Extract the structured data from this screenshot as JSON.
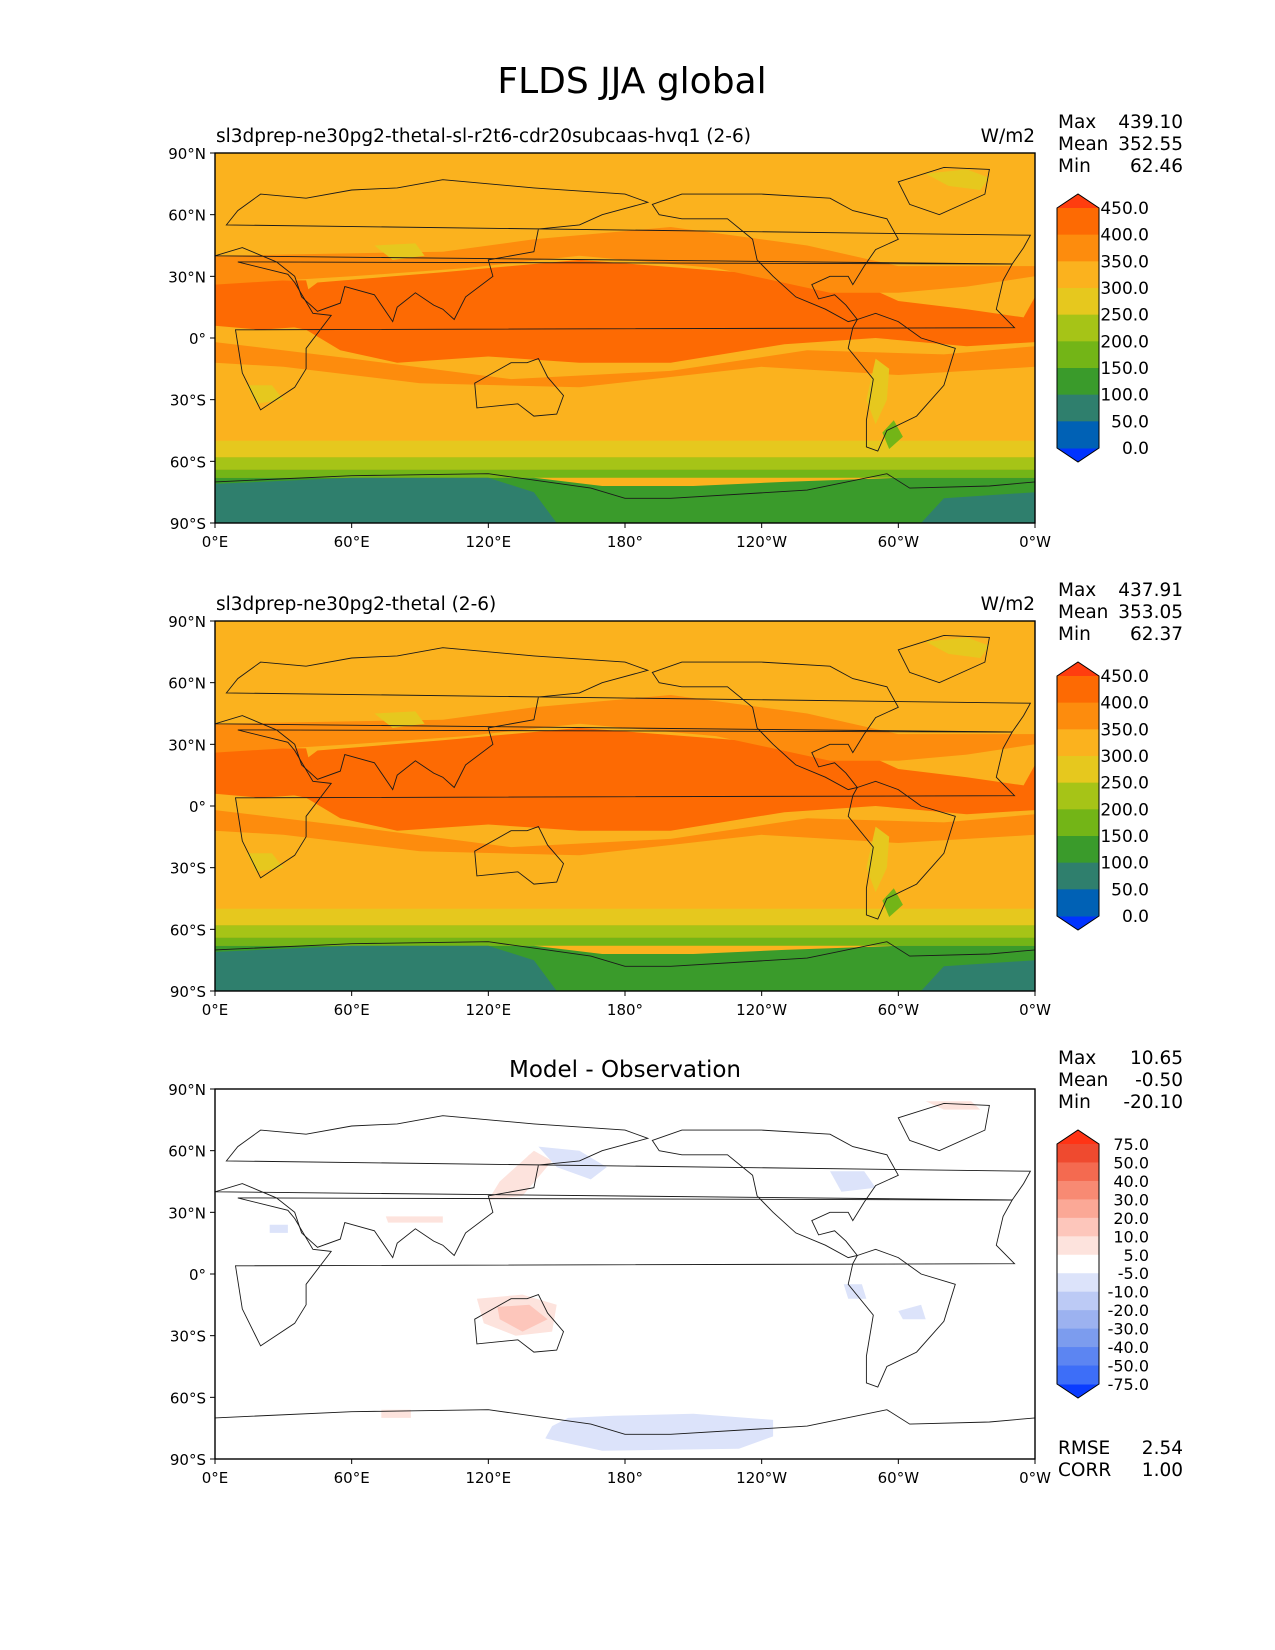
{
  "title": "FLDS JJA global",
  "colors": {
    "abs": [
      "#0033ff",
      "#0061b5",
      "#2f7f6d",
      "#3a9b2b",
      "#73b517",
      "#a6c417",
      "#e6c81e",
      "#fbb21e",
      "#fd8c0d",
      "#fd6a03",
      "#ff3d0f"
    ],
    "diff": [
      "#0a3cff",
      "#3d6ef8",
      "#5c85f2",
      "#7c9cee",
      "#9cb2f0",
      "#bccaf5",
      "#dce3fa",
      "#ffffff",
      "#fde3dd",
      "#fdc6bb",
      "#fba896",
      "#f88a73",
      "#f46a50",
      "#ef4a2f",
      "#ff3415"
    ]
  },
  "axes": {
    "x_ticks": [
      "0°E",
      "60°E",
      "120°E",
      "180°",
      "120°W",
      "60°W",
      "0°W"
    ],
    "y_ticks": [
      "90°N",
      "60°N",
      "30°N",
      "0°",
      "30°S",
      "60°S",
      "90°S"
    ]
  },
  "chart_data": [
    {
      "type": "heatmap",
      "title": "sl3dprep-ne30pg2-thetal-sl-r2t6-cdr20subcaas-hvq1 (2-6)",
      "units": "W/m2",
      "stats": [
        {
          "label": "Max",
          "value": "439.10"
        },
        {
          "label": "Mean",
          "value": "352.55"
        },
        {
          "label": "Min",
          "value": "62.46"
        }
      ],
      "colorbar": {
        "levels": [
          0,
          50,
          100,
          150,
          200,
          250,
          300,
          350,
          400,
          450
        ],
        "tick_labels": [
          "450.0",
          "400.0",
          "350.0",
          "300.0",
          "250.0",
          "200.0",
          "150.0",
          "100.0",
          "50.0",
          "0.0"
        ]
      },
      "xlim": [
        0,
        360
      ],
      "ylim": [
        -90,
        90
      ]
    },
    {
      "type": "heatmap",
      "title": "sl3dprep-ne30pg2-thetal (2-6)",
      "units": "W/m2",
      "stats": [
        {
          "label": "Max",
          "value": "437.91"
        },
        {
          "label": "Mean",
          "value": "353.05"
        },
        {
          "label": "Min",
          "value": "62.37"
        }
      ],
      "colorbar": {
        "levels": [
          0,
          50,
          100,
          150,
          200,
          250,
          300,
          350,
          400,
          450
        ],
        "tick_labels": [
          "450.0",
          "400.0",
          "350.0",
          "300.0",
          "250.0",
          "200.0",
          "150.0",
          "100.0",
          "50.0",
          "0.0"
        ]
      },
      "xlim": [
        0,
        360
      ],
      "ylim": [
        -90,
        90
      ]
    },
    {
      "type": "heatmap",
      "title": "Model - Observation",
      "units": "",
      "stats": [
        {
          "label": "Max",
          "value": "10.65"
        },
        {
          "label": "Mean",
          "value": "-0.50"
        },
        {
          "label": "Min",
          "value": "-20.10"
        }
      ],
      "colorbar": {
        "levels": [
          -75,
          -50,
          -40,
          -30,
          -20,
          -10,
          -5,
          5,
          10,
          20,
          30,
          40,
          50,
          75
        ],
        "tick_labels": [
          "75.0",
          "50.0",
          "40.0",
          "30.0",
          "20.0",
          "10.0",
          "5.0",
          "-5.0",
          "-10.0",
          "-20.0",
          "-30.0",
          "-40.0",
          "-50.0",
          "-75.0"
        ]
      },
      "metrics": [
        {
          "label": "RMSE",
          "value": "2.54"
        },
        {
          "label": "CORR",
          "value": "1.00"
        }
      ],
      "xlim": [
        0,
        360
      ],
      "ylim": [
        -90,
        90
      ]
    }
  ]
}
